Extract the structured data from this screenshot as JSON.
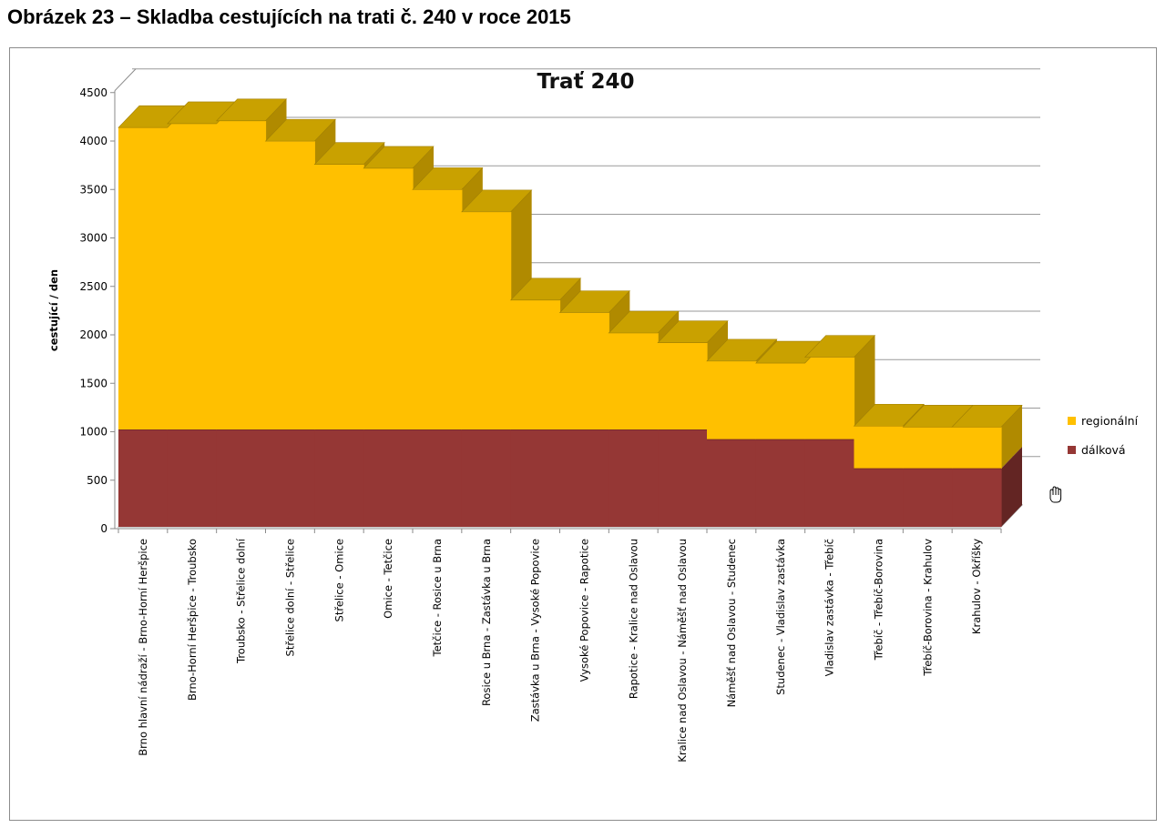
{
  "page": {
    "caption": "Obrázek 23 – Skladba cestujících na trati č. 240 v roce 2015"
  },
  "chart_data": {
    "type": "area",
    "title": "Trať 240",
    "xlabel": "",
    "ylabel": "cestující / den",
    "ylim": [
      0,
      4500
    ],
    "yticks": [
      0,
      500,
      1000,
      1500,
      2000,
      2500,
      3000,
      3500,
      4000,
      4500
    ],
    "stacked": true,
    "step": true,
    "three_d": true,
    "grid": true,
    "legend_position": "right",
    "categories": [
      "Brno hlavní nádraží - Brno-Horní Heršpice",
      "Brno-Horní Heršpice - Troubsko",
      "Troubsko - Střelice dolní",
      "Střelice dolní - Střelice",
      "Střelice - Omice",
      "Omice - Tetčice",
      "Tetčice - Rosice u Brna",
      "Rosice u Brna - Zastávka u Brna",
      "Zastávka u Brna - Vysoké Popovice",
      "Vysoké Popovice - Rapotice",
      "Rapotice - Kralice nad Oslavou",
      "Kralice nad Oslavou - Náměšť nad Oslavou",
      "Náměšť nad Oslavou - Studenec",
      "Studenec - Vladislav zastávka",
      "Vladislav zastávka - Třebíč",
      "Třebíč - Třebíč-Borovina",
      "Třebíč-Borovina - Krahulov",
      "Krahulov - Okříšky"
    ],
    "series": [
      {
        "name": "dálková",
        "color": "#953735",
        "values": [
          1000,
          1000,
          1000,
          1000,
          1000,
          1000,
          1000,
          1000,
          1000,
          1000,
          1000,
          1000,
          900,
          900,
          900,
          600,
          600,
          600
        ]
      },
      {
        "name": "regionální",
        "color": "#FFC000",
        "values": [
          3120,
          3160,
          3190,
          2980,
          2740,
          2700,
          2480,
          2250,
          1340,
          1210,
          1000,
          900,
          810,
          790,
          850,
          440,
          430,
          430
        ]
      }
    ]
  }
}
